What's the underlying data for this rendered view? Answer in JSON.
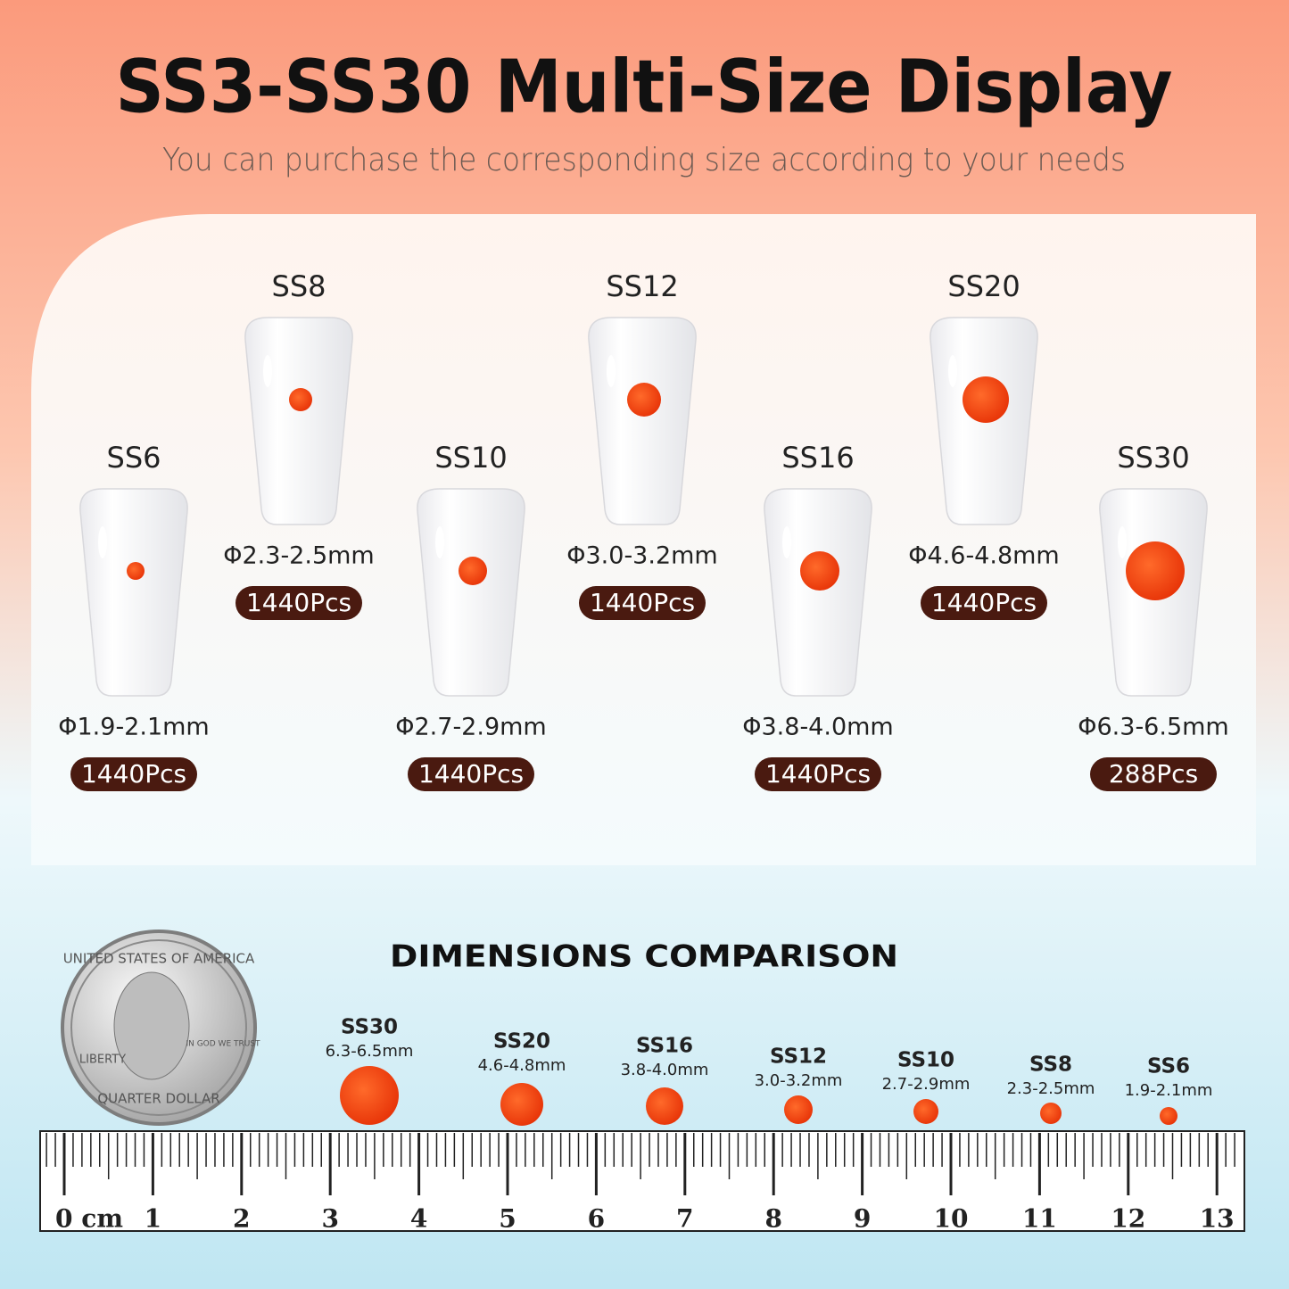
{
  "header": {
    "title": "SS3-SS30 Multi-Size Display",
    "subtitle": "You can purchase the corresponding size according to your needs"
  },
  "sizes": [
    {
      "name": "SS6",
      "diameter": "Φ1.9-2.1mm",
      "count": "1440Pcs"
    },
    {
      "name": "SS8",
      "diameter": "Φ2.3-2.5mm",
      "count": "1440Pcs"
    },
    {
      "name": "SS10",
      "diameter": "Φ2.7-2.9mm",
      "count": "1440Pcs"
    },
    {
      "name": "SS12",
      "diameter": "Φ3.0-3.2mm",
      "count": "1440Pcs"
    },
    {
      "name": "SS16",
      "diameter": "Φ3.8-4.0mm",
      "count": "1440Pcs"
    },
    {
      "name": "SS20",
      "diameter": "Φ4.6-4.8mm",
      "count": "1440Pcs"
    },
    {
      "name": "SS30",
      "diameter": "Φ6.3-6.5mm",
      "count": "288Pcs"
    }
  ],
  "comparison": {
    "title": "DIMENSIONS COMPARISON",
    "items": [
      {
        "name": "SS30",
        "range": "6.3-6.5mm"
      },
      {
        "name": "SS20",
        "range": "4.6-4.8mm"
      },
      {
        "name": "SS16",
        "range": "3.8-4.0mm"
      },
      {
        "name": "SS12",
        "range": "3.0-3.2mm"
      },
      {
        "name": "SS10",
        "range": "2.7-2.9mm"
      },
      {
        "name": "SS8",
        "range": "2.3-2.5mm"
      },
      {
        "name": "SS6",
        "range": "1.9-2.1mm"
      }
    ]
  },
  "coin": {
    "top": "UNITED STATES OF AMERICA",
    "motto": "IN GOD WE TRUST",
    "left": "LIBERTY",
    "bottom": "QUARTER DOLLAR"
  },
  "ruler": {
    "labels": [
      "0 cm",
      "1",
      "2",
      "3",
      "4",
      "5",
      "6",
      "7",
      "8",
      "9",
      "10",
      "11",
      "12",
      "13"
    ]
  }
}
